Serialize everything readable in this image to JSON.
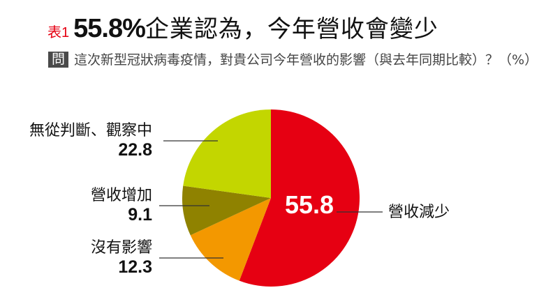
{
  "header": {
    "table_tag": "表1",
    "title_number": "55.8%",
    "title_text": "企業認為，今年營收會變少"
  },
  "question": {
    "badge": "問",
    "text": "這次新型冠狀病毒疫情，對貴公司今年營收的影響（與去年同期比較）？（%）"
  },
  "colors": {
    "decrease": "#e60012",
    "no_effect": "#f39800",
    "increase": "#8f8200",
    "unknown": "#c3d600",
    "accent_red": "#e60012",
    "badge_bg": "#4a4a4a"
  },
  "chart_data": {
    "type": "pie",
    "title": "55.8%企業認為，今年營收會變少",
    "subtitle": "這次新型冠狀病毒疫情，對貴公司今年營收的影響（與去年同期比較）？（%）",
    "unit": "%",
    "start_angle": "12 o'clock, clockwise",
    "slices": [
      {
        "label": "營收減少",
        "value": 55.8,
        "color": "#e60012"
      },
      {
        "label": "沒有影響",
        "value": 12.3,
        "color": "#f39800"
      },
      {
        "label": "營收增加",
        "value": 9.1,
        "color": "#8f8200"
      },
      {
        "label": "無從判斷、觀察中",
        "value": 22.8,
        "color": "#c3d600"
      }
    ]
  },
  "labels": {
    "decrease": {
      "name": "營收減少",
      "value": "55.8"
    },
    "no_effect": {
      "name": "沒有影響",
      "value": "12.3"
    },
    "increase": {
      "name": "營收增加",
      "value": "9.1"
    },
    "unknown": {
      "name": "無從判斷、觀察中",
      "value": "22.8"
    }
  }
}
